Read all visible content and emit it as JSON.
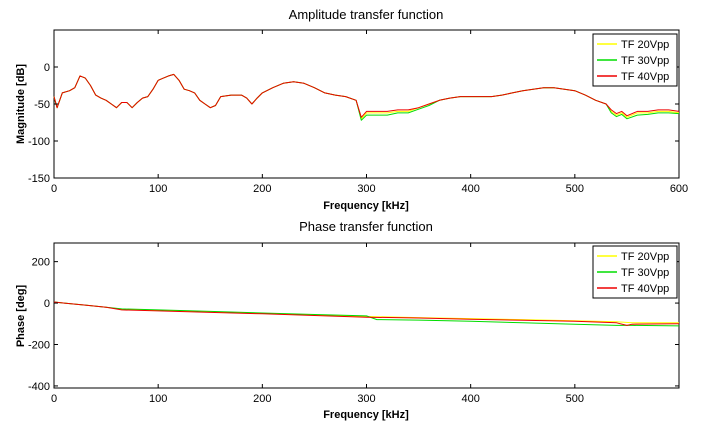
{
  "chart_data": [
    {
      "type": "line",
      "title": "Amplitude transfer function",
      "xlabel": "Frequency [kHz]",
      "ylabel": "Magnitude [dB]",
      "xlim": [
        0,
        600
      ],
      "ylim": [
        -150,
        50
      ],
      "x_ticks": [
        0,
        100,
        200,
        300,
        400,
        500,
        600
      ],
      "y_ticks": [
        -150,
        -100,
        -50,
        0
      ],
      "grid": false,
      "legend_position": "top-right",
      "series": [
        {
          "name": "TF 20Vpp",
          "color": "#ffff00",
          "x": [
            0,
            3,
            8,
            15,
            20,
            25,
            30,
            35,
            40,
            45,
            50,
            55,
            60,
            65,
            70,
            75,
            80,
            85,
            90,
            95,
            100,
            105,
            110,
            115,
            120,
            125,
            130,
            135,
            140,
            145,
            150,
            155,
            160,
            170,
            180,
            185,
            190,
            195,
            200,
            210,
            220,
            230,
            240,
            250,
            260,
            270,
            280,
            290,
            295,
            300,
            310,
            320,
            330,
            340,
            350,
            360,
            370,
            380,
            390,
            400,
            410,
            420,
            430,
            440,
            450,
            460,
            470,
            480,
            490,
            500,
            510,
            520,
            530,
            535,
            540,
            545,
            550,
            560,
            570,
            580,
            590,
            600
          ],
          "values": [
            -40,
            -55,
            -35,
            -32,
            -28,
            -12,
            -15,
            -25,
            -38,
            -42,
            -45,
            -50,
            -55,
            -48,
            -48,
            -55,
            -48,
            -42,
            -40,
            -30,
            -18,
            -15,
            -12,
            -10,
            -18,
            -30,
            -32,
            -35,
            -45,
            -50,
            -55,
            -52,
            -40,
            -38,
            -38,
            -42,
            -50,
            -42,
            -35,
            -28,
            -22,
            -20,
            -22,
            -28,
            -35,
            -38,
            -40,
            -45,
            -70,
            -62,
            -62,
            -62,
            -60,
            -60,
            -55,
            -50,
            -45,
            -42,
            -40,
            -40,
            -40,
            -40,
            -38,
            -35,
            -32,
            -30,
            -28,
            -28,
            -30,
            -32,
            -38,
            -45,
            -50,
            -60,
            -65,
            -62,
            -68,
            -62,
            -62,
            -60,
            -60,
            -62
          ]
        },
        {
          "name": "TF 30Vpp",
          "color": "#00dd00",
          "x": [
            0,
            3,
            8,
            15,
            20,
            25,
            30,
            35,
            40,
            45,
            50,
            55,
            60,
            65,
            70,
            75,
            80,
            85,
            90,
            95,
            100,
            105,
            110,
            115,
            120,
            125,
            130,
            135,
            140,
            145,
            150,
            155,
            160,
            170,
            180,
            185,
            190,
            195,
            200,
            210,
            220,
            230,
            240,
            250,
            260,
            270,
            280,
            290,
            295,
            300,
            310,
            320,
            330,
            340,
            350,
            360,
            370,
            380,
            390,
            400,
            410,
            420,
            430,
            440,
            450,
            460,
            470,
            480,
            490,
            500,
            510,
            520,
            530,
            535,
            540,
            545,
            550,
            560,
            570,
            580,
            590,
            600
          ],
          "values": [
            -40,
            -55,
            -35,
            -32,
            -28,
            -12,
            -15,
            -25,
            -38,
            -42,
            -45,
            -50,
            -55,
            -48,
            -48,
            -55,
            -48,
            -42,
            -40,
            -30,
            -18,
            -15,
            -12,
            -10,
            -18,
            -30,
            -32,
            -35,
            -45,
            -50,
            -55,
            -52,
            -40,
            -38,
            -38,
            -42,
            -50,
            -42,
            -35,
            -28,
            -22,
            -20,
            -22,
            -28,
            -35,
            -38,
            -40,
            -45,
            -72,
            -65,
            -65,
            -65,
            -62,
            -62,
            -57,
            -52,
            -45,
            -42,
            -40,
            -40,
            -40,
            -40,
            -38,
            -35,
            -32,
            -30,
            -28,
            -28,
            -30,
            -32,
            -38,
            -45,
            -50,
            -62,
            -67,
            -64,
            -70,
            -65,
            -64,
            -62,
            -62,
            -63
          ]
        },
        {
          "name": "TF 40Vpp",
          "color": "#ee0000",
          "x": [
            0,
            3,
            8,
            15,
            20,
            25,
            30,
            35,
            40,
            45,
            50,
            55,
            60,
            65,
            70,
            75,
            80,
            85,
            90,
            95,
            100,
            105,
            110,
            115,
            120,
            125,
            130,
            135,
            140,
            145,
            150,
            155,
            160,
            170,
            180,
            185,
            190,
            195,
            200,
            210,
            220,
            230,
            240,
            250,
            260,
            270,
            280,
            290,
            295,
            300,
            310,
            320,
            330,
            340,
            350,
            360,
            370,
            380,
            390,
            400,
            410,
            420,
            430,
            440,
            450,
            460,
            470,
            480,
            490,
            500,
            510,
            520,
            530,
            535,
            540,
            545,
            550,
            560,
            570,
            580,
            590,
            600
          ],
          "values": [
            -40,
            -55,
            -35,
            -32,
            -28,
            -12,
            -15,
            -25,
            -38,
            -42,
            -45,
            -50,
            -55,
            -48,
            -48,
            -55,
            -48,
            -42,
            -40,
            -30,
            -18,
            -15,
            -12,
            -10,
            -18,
            -30,
            -32,
            -35,
            -45,
            -50,
            -55,
            -52,
            -40,
            -38,
            -38,
            -42,
            -50,
            -42,
            -35,
            -28,
            -22,
            -20,
            -22,
            -28,
            -35,
            -38,
            -40,
            -45,
            -68,
            -60,
            -60,
            -60,
            -58,
            -58,
            -55,
            -50,
            -45,
            -42,
            -40,
            -40,
            -40,
            -40,
            -38,
            -35,
            -32,
            -30,
            -28,
            -28,
            -30,
            -32,
            -38,
            -45,
            -50,
            -58,
            -63,
            -60,
            -66,
            -60,
            -60,
            -58,
            -58,
            -60
          ]
        }
      ]
    },
    {
      "type": "line",
      "title": "Phase transfer function",
      "xlabel": "Frequency [kHz]",
      "ylabel": "Phase [deg]",
      "xlim": [
        0,
        600
      ],
      "ylim": [
        -410,
        290
      ],
      "x_ticks": [
        0,
        100,
        200,
        300,
        400,
        500
      ],
      "y_ticks": [
        -400,
        -200,
        0,
        200
      ],
      "grid": false,
      "legend_position": "top-right",
      "series": [
        {
          "name": "TF 20Vpp",
          "color": "#ffff00",
          "x": [
            0,
            10,
            30,
            50,
            65,
            100,
            150,
            200,
            250,
            300,
            350,
            400,
            450,
            500,
            540,
            555,
            600
          ],
          "values": [
            5,
            0,
            -10,
            -20,
            -30,
            -35,
            -42,
            -50,
            -58,
            -65,
            -70,
            -75,
            -80,
            -85,
            -90,
            -95,
            -95
          ]
        },
        {
          "name": "TF 30Vpp",
          "color": "#00dd00",
          "x": [
            0,
            10,
            30,
            50,
            65,
            100,
            150,
            200,
            250,
            300,
            310,
            350,
            400,
            450,
            500,
            540,
            555,
            600
          ],
          "values": [
            5,
            0,
            -10,
            -20,
            -28,
            -33,
            -40,
            -48,
            -55,
            -62,
            -80,
            -82,
            -88,
            -95,
            -102,
            -108,
            -108,
            -110
          ]
        },
        {
          "name": "TF 40Vpp",
          "color": "#ee0000",
          "x": [
            0,
            10,
            30,
            50,
            65,
            100,
            150,
            200,
            250,
            300,
            350,
            400,
            450,
            500,
            540,
            550,
            555,
            600
          ],
          "values": [
            5,
            0,
            -10,
            -20,
            -33,
            -38,
            -45,
            -52,
            -60,
            -68,
            -72,
            -78,
            -83,
            -88,
            -95,
            -108,
            -102,
            -100
          ]
        }
      ]
    }
  ]
}
